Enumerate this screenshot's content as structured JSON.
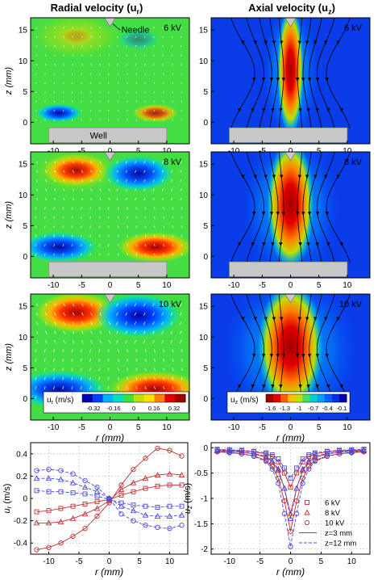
{
  "headers": {
    "radial": "Radial velocity (u",
    "radial_sub": "r",
    "axial": "Axial velocity (u",
    "axial_sub": "z"
  },
  "contour_panels": {
    "z_label": "z (mm)",
    "r_label": "r (mm)",
    "x_ticks": [
      "-10",
      "-5",
      "0",
      "5",
      "10"
    ],
    "y_ticks": [
      "0",
      "5",
      "10",
      "15"
    ],
    "xlim": [
      -14,
      14
    ],
    "ylim": [
      -3.5,
      17
    ],
    "voltages": [
      "6 kV",
      "8 kV",
      "10 kV"
    ],
    "needle_label": "Needle",
    "well_label": "Well",
    "radial_colorbar": {
      "label": "u",
      "label_sub": "r",
      "unit": " (m/s)",
      "ticks": [
        "-0.32",
        "-0.16",
        "0",
        "0.16",
        "0.32"
      ],
      "colors": [
        "#0000b0",
        "#0040ff",
        "#00b0ff",
        "#00e0c0",
        "#40e040",
        "#c0e000",
        "#ffe000",
        "#ff8000",
        "#e00000",
        "#a00000"
      ]
    },
    "axial_colorbar": {
      "label": "u",
      "label_sub": "z",
      "unit": " (m/s)",
      "ticks": [
        "-1.6",
        "-1.3",
        "-1",
        "-0.7",
        "-0.4",
        "-0.1"
      ],
      "colors": [
        "#a00000",
        "#e00000",
        "#ff6000",
        "#ffc000",
        "#c0e000",
        "#40e060",
        "#00d0d0",
        "#00a0ff",
        "#0060ff",
        "#0030e0",
        "#0000b0"
      ]
    }
  },
  "chart_data": [
    {
      "type": "line",
      "ylabel": "u",
      "ylabel_sub": "r",
      "ylabel_unit": " (m/s)",
      "xlabel": "r (mm)",
      "xlim": [
        -13,
        13
      ],
      "ylim": [
        -0.5,
        0.5
      ],
      "x_ticks": [
        "-10",
        "-5",
        "0",
        "5",
        "10"
      ],
      "y_ticks": [
        "-0.4",
        "-0.2",
        "0",
        "0.2",
        "0.4"
      ],
      "x": [
        -12,
        -10,
        -8,
        -6,
        -4,
        -2,
        0,
        2,
        4,
        6,
        8,
        10,
        12
      ],
      "series": [
        {
          "marker": "square",
          "color": "#c03030",
          "line": "solid",
          "values": [
            -0.12,
            -0.11,
            -0.09,
            -0.07,
            -0.05,
            -0.03,
            -0.01,
            0.03,
            0.06,
            0.09,
            0.11,
            0.12,
            0.12
          ]
        },
        {
          "marker": "triangle",
          "color": "#c03030",
          "line": "solid",
          "values": [
            -0.22,
            -0.22,
            -0.21,
            -0.18,
            -0.14,
            -0.09,
            -0.02,
            0.08,
            0.14,
            0.18,
            0.21,
            0.22,
            0.21
          ]
        },
        {
          "marker": "circle",
          "color": "#c03030",
          "line": "solid",
          "values": [
            -0.46,
            -0.44,
            -0.4,
            -0.34,
            -0.27,
            -0.16,
            -0.04,
            0.12,
            0.26,
            0.36,
            0.45,
            0.43,
            0.38
          ]
        },
        {
          "marker": "square",
          "color": "#4a4adc",
          "line": "dashed",
          "values": [
            0.07,
            0.06,
            0.06,
            0.05,
            0.04,
            0.02,
            -0.01,
            -0.04,
            -0.06,
            -0.07,
            -0.08,
            -0.07,
            -0.07
          ]
        },
        {
          "marker": "triangle",
          "color": "#4a4adc",
          "line": "dashed",
          "values": [
            0.18,
            0.18,
            0.17,
            0.14,
            0.1,
            0.06,
            0.0,
            -0.07,
            -0.11,
            -0.15,
            -0.16,
            -0.16,
            -0.15
          ]
        },
        {
          "marker": "circle",
          "color": "#4a4adc",
          "line": "dashed",
          "values": [
            0.25,
            0.26,
            0.25,
            0.22,
            0.16,
            0.1,
            0.0,
            -0.14,
            -0.2,
            -0.24,
            -0.26,
            -0.27,
            -0.24
          ]
        }
      ]
    },
    {
      "type": "line",
      "ylabel": "u",
      "ylabel_sub": "z",
      "ylabel_unit": " (m/s)",
      "xlabel": "r (mm)",
      "xlim": [
        -13,
        13
      ],
      "ylim": [
        -2.1,
        0.1
      ],
      "x_ticks": [
        "-10",
        "-5",
        "0",
        "5",
        "10"
      ],
      "y_ticks": [
        "-2",
        "-1.5",
        "-1",
        "-0.5",
        "0"
      ],
      "x": [
        -12,
        -10,
        -8,
        -6,
        -4,
        -3,
        -2,
        -1,
        0,
        1,
        2,
        3,
        4,
        6,
        8,
        10,
        12
      ],
      "series": [
        {
          "name": "6 kV",
          "marker": "square",
          "color": "#c03030",
          "line": "solid",
          "values": [
            -0.04,
            -0.05,
            -0.06,
            -0.08,
            -0.12,
            -0.17,
            -0.28,
            -0.5,
            -0.78,
            -0.5,
            -0.28,
            -0.17,
            -0.12,
            -0.08,
            -0.06,
            -0.05,
            -0.04
          ]
        },
        {
          "name": "8 kV",
          "marker": "triangle",
          "color": "#c03030",
          "line": "solid",
          "values": [
            -0.06,
            -0.07,
            -0.09,
            -0.12,
            -0.19,
            -0.28,
            -0.45,
            -0.8,
            -1.3,
            -0.8,
            -0.45,
            -0.28,
            -0.19,
            -0.12,
            -0.09,
            -0.07,
            -0.06
          ]
        },
        {
          "name": "10 kV",
          "marker": "circle",
          "color": "#c03030",
          "line": "solid",
          "values": [
            -0.08,
            -0.1,
            -0.12,
            -0.16,
            -0.25,
            -0.37,
            -0.6,
            -1.05,
            -1.65,
            -1.05,
            -0.6,
            -0.37,
            -0.25,
            -0.16,
            -0.12,
            -0.1,
            -0.08
          ]
        },
        {
          "marker": "square",
          "color": "#4a4adc",
          "line": "dashed",
          "values": [
            -0.03,
            -0.04,
            -0.05,
            -0.07,
            -0.1,
            -0.14,
            -0.22,
            -0.4,
            -0.6,
            -0.4,
            -0.22,
            -0.14,
            -0.1,
            -0.07,
            -0.05,
            -0.04,
            -0.03
          ]
        },
        {
          "marker": "triangle",
          "color": "#4a4adc",
          "line": "dashed",
          "values": [
            -0.05,
            -0.06,
            -0.08,
            -0.11,
            -0.17,
            -0.26,
            -0.42,
            -0.8,
            -1.4,
            -0.8,
            -0.42,
            -0.26,
            -0.17,
            -0.11,
            -0.08,
            -0.06,
            -0.05
          ]
        },
        {
          "marker": "circle",
          "color": "#4a4adc",
          "line": "dashed",
          "values": [
            -0.07,
            -0.09,
            -0.12,
            -0.17,
            -0.27,
            -0.42,
            -0.7,
            -1.3,
            -1.95,
            -1.3,
            -0.7,
            -0.42,
            -0.27,
            -0.17,
            -0.12,
            -0.09,
            -0.07
          ]
        }
      ],
      "legend": {
        "position": "bottom-right",
        "entries": [
          {
            "label": "6 kV",
            "marker": "square",
            "color": "#c03030"
          },
          {
            "label": "8 kV",
            "marker": "triangle",
            "color": "#c03030"
          },
          {
            "label": "10 kV",
            "marker": "circle",
            "color": "#c03030"
          },
          {
            "label": "z=3 mm",
            "line": "solid",
            "color": "#e03030"
          },
          {
            "label": "z=12 mm",
            "line": "dashed",
            "color": "#4a4adc"
          }
        ]
      }
    }
  ]
}
